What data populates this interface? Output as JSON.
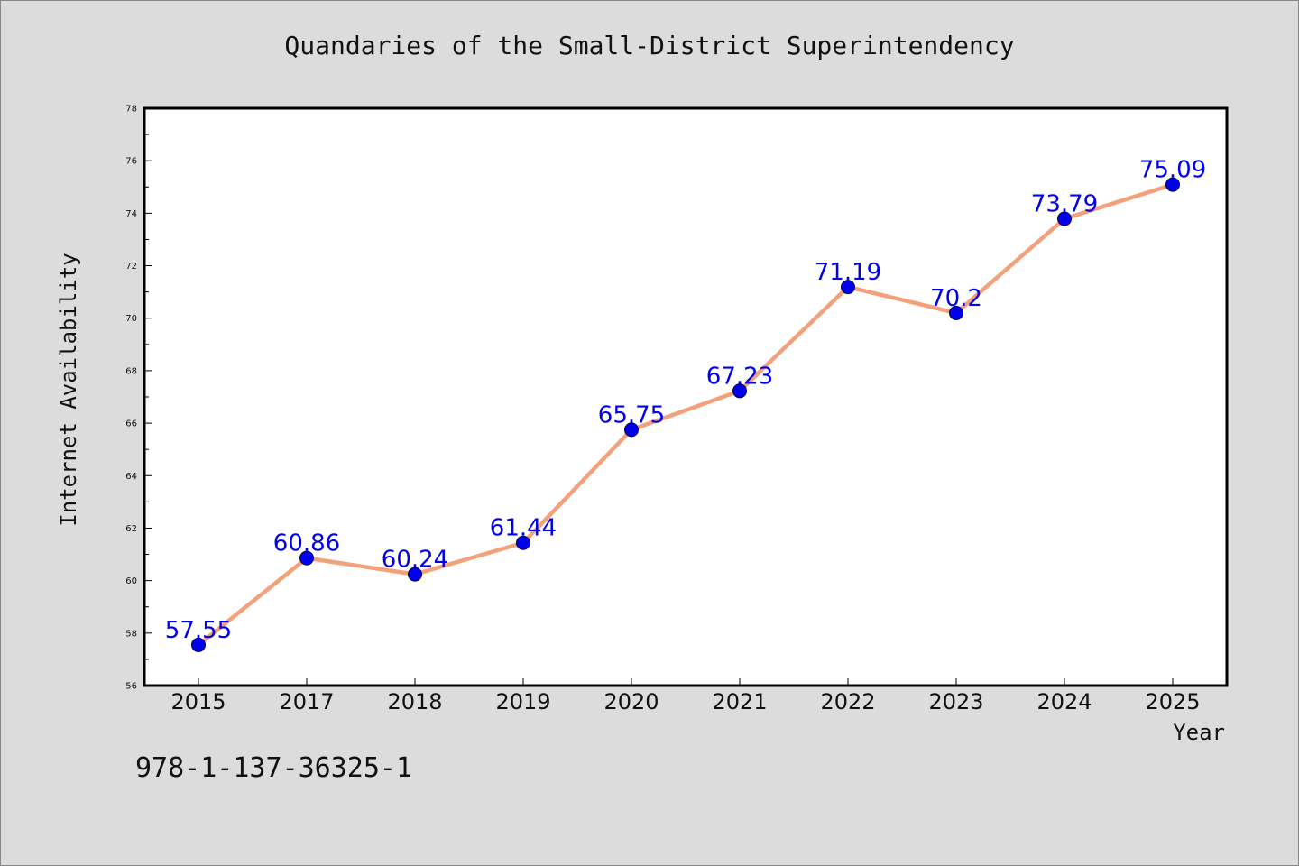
{
  "title": "Quandaries of the Small-District Superintendency",
  "isbn": "978-1-137-36325-1",
  "colors": {
    "background": "#dcdcdc",
    "plot_background": "#ffffff",
    "line": "#f4a07a",
    "marker": "#0000ee",
    "data_label": "#0000ee"
  },
  "chart_data": {
    "type": "line",
    "categories": [
      "2015",
      "2017",
      "2018",
      "2019",
      "2020",
      "2021",
      "2022",
      "2023",
      "2024",
      "2025"
    ],
    "series": [
      {
        "values": [
          57.55,
          60.86,
          60.24,
          61.44,
          65.75,
          67.23,
          71.19,
          70.2,
          73.79,
          75.09
        ]
      }
    ],
    "data_labels": [
      "57.55",
      "60.86",
      "60.24",
      "61.44",
      "65.75",
      "67.23",
      "71.19",
      "70.2",
      "73.79",
      "75.09"
    ],
    "xlabel": "Year",
    "ylabel": "Internet Availability",
    "ylim": [
      56,
      78
    ],
    "yticks": [
      "56",
      "58",
      "60",
      "62",
      "64",
      "66",
      "68",
      "70",
      "72",
      "74",
      "76",
      "78"
    ],
    "grid": false,
    "legend": "none"
  }
}
